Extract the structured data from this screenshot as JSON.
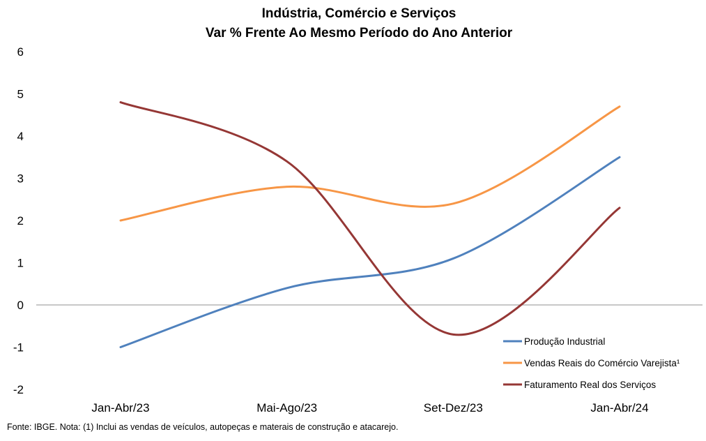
{
  "chart_data": {
    "type": "line",
    "title": "Indústria, Comércio e Serviços",
    "subtitle": "Var % Frente Ao Mesmo Período do Ano Anterior",
    "categories": [
      "Jan-Abr/23",
      "Mai-Ago/23",
      "Set-Dez/23",
      "Jan-Abr/24"
    ],
    "ylim": [
      -2,
      6
    ],
    "yticks": [
      "6",
      "5",
      "4",
      "3",
      "2",
      "1",
      "0",
      "-1",
      "-2"
    ],
    "ytick_values": [
      6,
      5,
      4,
      3,
      2,
      1,
      0,
      -1,
      -2
    ],
    "xlabel": "",
    "ylabel": "",
    "grid": false,
    "smooth": true,
    "legend_position": "bottom-right",
    "series": [
      {
        "name": "Produção Industrial",
        "color": "#4f81bd",
        "values": [
          -1.0,
          0.4,
          1.1,
          3.5
        ]
      },
      {
        "name": "Vendas Reais do Comércio Varejista¹",
        "color": "#f79646",
        "values": [
          2.0,
          2.8,
          2.4,
          4.7
        ]
      },
      {
        "name": "Faturamento Real dos Serviços",
        "color": "#953735",
        "values": [
          4.8,
          3.4,
          -0.7,
          2.3
        ]
      }
    ]
  },
  "footer": {
    "source": "Fonte: IBGE. Nota: (1) Inclui as vendas de veículos, autopeças e materais de construção e atacarejo."
  }
}
